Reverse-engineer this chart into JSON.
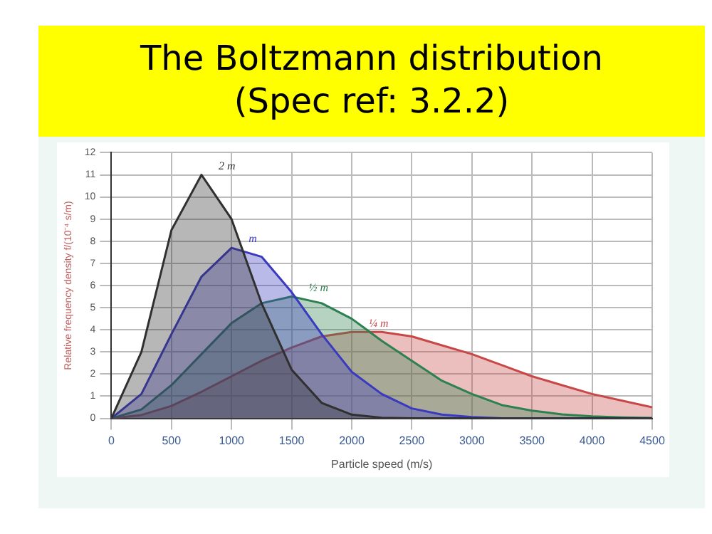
{
  "chart_data": {
    "type": "area",
    "title": "The Boltzmann distribution",
    "subtitle": "(Spec ref: 3.2.2)",
    "xlabel": "Particle speed (m/s)",
    "ylabel": "Relative frequency density f/(10⁻⁴ s/m)",
    "x": [
      0,
      250,
      500,
      750,
      1000,
      1250,
      1500,
      1750,
      2000,
      2250,
      2500,
      2750,
      3000,
      3250,
      3500,
      3750,
      4000,
      4250,
      4500
    ],
    "series": [
      {
        "name": "2 m",
        "color": "#303030",
        "values": [
          0,
          3.0,
          8.5,
          11,
          9.0,
          5.2,
          2.2,
          0.7,
          0.17,
          0.03,
          0,
          0,
          0,
          0,
          0,
          0,
          0,
          0,
          0
        ]
      },
      {
        "name": "m",
        "color": "#3a3ac0",
        "values": [
          0,
          1.1,
          3.8,
          6.4,
          7.7,
          7.3,
          5.7,
          3.8,
          2.1,
          1.1,
          0.45,
          0.17,
          0.06,
          0,
          0,
          0,
          0,
          0,
          0
        ]
      },
      {
        "name": "½ m",
        "color": "#2e8050",
        "values": [
          0,
          0.4,
          1.5,
          2.9,
          4.3,
          5.2,
          5.5,
          5.2,
          4.5,
          3.5,
          2.6,
          1.7,
          1.1,
          0.6,
          0.35,
          0.18,
          0.09,
          0.04,
          0.02
        ]
      },
      {
        "name": "¼ m",
        "color": "#c84848",
        "values": [
          0,
          0.15,
          0.56,
          1.2,
          1.9,
          2.6,
          3.2,
          3.7,
          3.9,
          3.9,
          3.7,
          3.3,
          2.9,
          2.4,
          1.9,
          1.5,
          1.1,
          0.8,
          0.5
        ]
      }
    ],
    "xlim": [
      0,
      4500
    ],
    "xticks": [
      0,
      500,
      1000,
      1500,
      2000,
      2500,
      3000,
      3500,
      4000,
      4500
    ],
    "ylim": [
      0,
      12
    ],
    "yticks": [
      0,
      1,
      2,
      3,
      4,
      5,
      6,
      7,
      8,
      9,
      10,
      11,
      12
    ],
    "grid": true,
    "legend": false,
    "marker": "none",
    "line_style": "solid"
  }
}
